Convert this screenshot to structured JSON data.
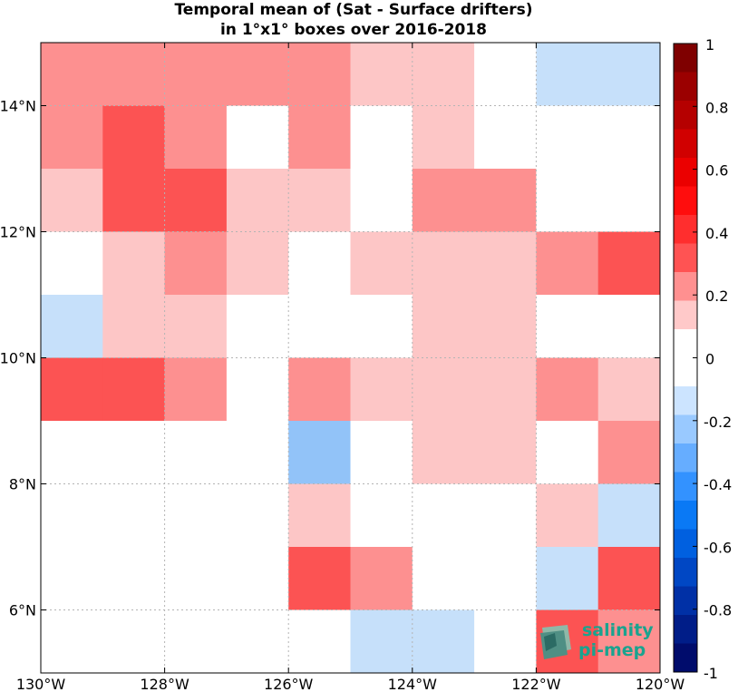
{
  "chart_data": {
    "type": "heatmap",
    "title": [
      "Temporal mean of (Sat - Surface drifters)",
      "in 1°x1° boxes over 2016-2018"
    ],
    "x_tick_labels": [
      "130°W",
      "128°W",
      "126°W",
      "124°W",
      "122°W",
      "120°W"
    ],
    "x_ticks": [
      -130,
      -128,
      -126,
      -124,
      -122,
      -120
    ],
    "y_tick_labels": [
      "6°N",
      "8°N",
      "10°N",
      "12°N",
      "14°N"
    ],
    "y_ticks": [
      6,
      8,
      10,
      12,
      14
    ],
    "xlim": [
      -130,
      -120
    ],
    "ylim": [
      5,
      15
    ],
    "grid": true,
    "x_cells": [
      -130,
      -129,
      -128,
      -127,
      -126,
      -125,
      -124,
      -123,
      -122,
      -121
    ],
    "y_cells": [
      14,
      13,
      12,
      11,
      10,
      9,
      8,
      7,
      6,
      5
    ],
    "values": [
      [
        0.25,
        0.25,
        0.25,
        0.25,
        0.25,
        0.15,
        0.15,
        0,
        -0.15,
        -0.15
      ],
      [
        0.25,
        0.35,
        0.25,
        0,
        0.25,
        0,
        0.15,
        0,
        0,
        0
      ],
      [
        0.15,
        0.35,
        0.35,
        0.15,
        0.15,
        0,
        0.25,
        0.25,
        0,
        0
      ],
      [
        0,
        0.15,
        0.25,
        0.15,
        0,
        0.15,
        0.15,
        0.15,
        0.25,
        0.35
      ],
      [
        -0.15,
        0.15,
        0.15,
        0,
        0,
        0,
        0.15,
        0.15,
        0,
        0
      ],
      [
        0.35,
        0.35,
        0.25,
        0,
        0.25,
        0.15,
        0.15,
        0.15,
        0.25,
        0.15
      ],
      [
        0,
        0,
        0,
        0,
        -0.25,
        0,
        0.15,
        0.15,
        0,
        0.25
      ],
      [
        0,
        0,
        0,
        0,
        0.15,
        0,
        0,
        0,
        0.15,
        -0.15
      ],
      [
        0,
        0,
        0,
        0,
        0.35,
        0.25,
        0,
        0,
        -0.15,
        0.35
      ],
      [
        0,
        0,
        0,
        0,
        0,
        -0.15,
        -0.15,
        0,
        0.35,
        0.25
      ]
    ],
    "colorbar": {
      "range": [
        -1,
        1
      ],
      "tick_values": [
        1,
        0.8,
        0.6,
        0.4,
        0.2,
        0,
        -0.2,
        -0.4,
        -0.6,
        -0.8,
        -1
      ],
      "tick_labels": [
        "1",
        "0.8",
        "0.6",
        "0.4",
        "0.2",
        "0",
        "-0.2",
        "-0.4",
        "-0.6",
        "-0.8",
        "-1"
      ],
      "colors_top_to_bottom": [
        "#7f0000",
        "#9b0000",
        "#b50000",
        "#d10000",
        "#eb0000",
        "#ff0d0d",
        "#ff2e2e",
        "#ff5353",
        "#ff9090",
        "#ffc9c9",
        "#ffffff",
        "#ffffff",
        "#cce4ff",
        "#99c9ff",
        "#66adff",
        "#3392ff",
        "#0a79f5",
        "#0060e0",
        "#0047c4",
        "#0030a6",
        "#001d88",
        "#000c6c"
      ]
    }
  },
  "colors": {
    "neg_0_2": "#c6e0fa",
    "neg_0_3": "#92c3f8",
    "pos_0_1": "#fdc6c6",
    "pos_0_3": "#fd9090",
    "pos_0_4": "#fc5353",
    "zero": "#ffffff",
    "logo": "#1aa38f"
  },
  "logo": {
    "line1": "salinity",
    "line2": "pi-mep"
  }
}
